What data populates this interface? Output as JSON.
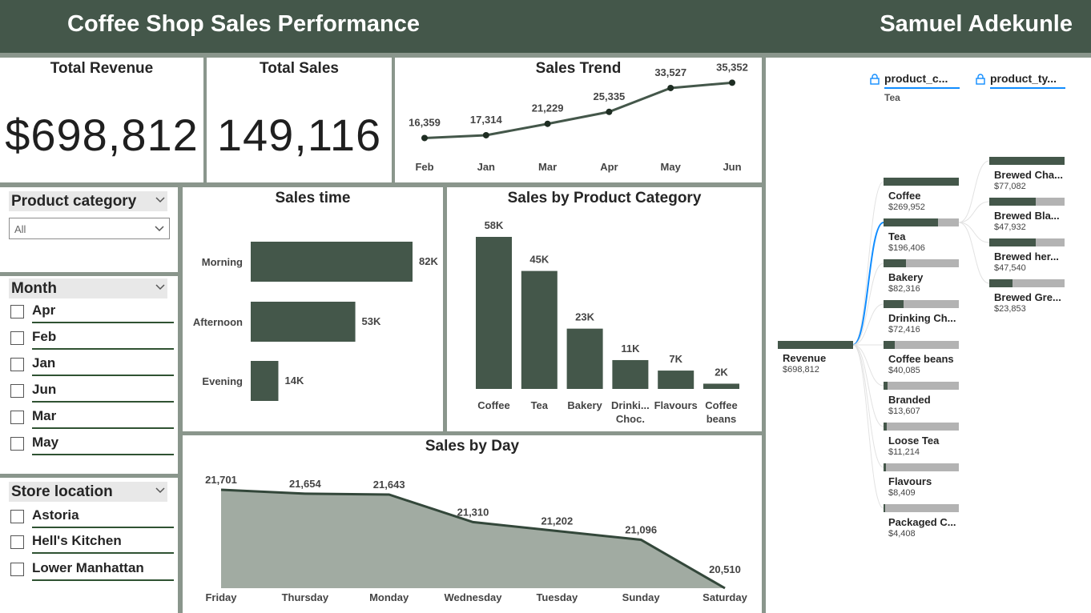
{
  "header": {
    "title": "Coffee Shop Sales Performance",
    "author": "Samuel Adekunle"
  },
  "kpis": {
    "revenue": {
      "title": "Total Revenue",
      "value": "$698,812"
    },
    "sales": {
      "title": "Total Sales",
      "value": "149,116"
    }
  },
  "slicers": {
    "category": {
      "title": "Product category",
      "selected": "All"
    },
    "month": {
      "title": "Month",
      "items": [
        "Apr",
        "Feb",
        "Jan",
        "Jun",
        "Mar",
        "May"
      ]
    },
    "location": {
      "title": "Store location",
      "items": [
        "Astoria",
        "Hell's Kitchen",
        "Lower Manhattan"
      ]
    }
  },
  "colors": {
    "primary": "#44574a",
    "area": "#a1aba2",
    "accent": "#118dff",
    "track": "#b3b3b3"
  },
  "chart_data": [
    {
      "type": "line",
      "title": "Sales Trend",
      "categories": [
        "Feb",
        "Jan",
        "Mar",
        "Apr",
        "May",
        "Jun"
      ],
      "values": [
        16359,
        17314,
        21229,
        25335,
        33527,
        35352
      ],
      "labels": [
        "16,359",
        "17,314",
        "21,229",
        "25,335",
        "33,527",
        "35,352"
      ],
      "ylim": [
        0,
        40000
      ]
    },
    {
      "type": "bar",
      "orientation": "horizontal",
      "title": "Sales time",
      "categories": [
        "Morning",
        "Afternoon",
        "Evening"
      ],
      "values": [
        82,
        53,
        14
      ],
      "labels": [
        "82K",
        "53K",
        "14K"
      ],
      "xlim": [
        0,
        82
      ]
    },
    {
      "type": "bar",
      "title": "Sales by Product Category",
      "categories": [
        [
          "Coffee"
        ],
        [
          "Tea"
        ],
        [
          "Bakery"
        ],
        [
          "Drinki...",
          "Choc."
        ],
        [
          "Flavours"
        ],
        [
          "Coffee",
          "beans"
        ]
      ],
      "values": [
        58,
        45,
        23,
        11,
        7,
        2
      ],
      "labels": [
        "58K",
        "45K",
        "23K",
        "11K",
        "7K",
        "2K"
      ],
      "ylim": [
        0,
        58
      ]
    },
    {
      "type": "area",
      "title": "Sales by Day",
      "categories": [
        "Friday",
        "Thursday",
        "Monday",
        "Wednesday",
        "Tuesday",
        "Sunday",
        "Saturday"
      ],
      "values": [
        21701,
        21654,
        21643,
        21310,
        21202,
        21096,
        20510
      ],
      "labels": [
        "21,701",
        "21,654",
        "21,643",
        "21,310",
        "21,202",
        "21,096",
        "20,510"
      ],
      "ylim": [
        20510,
        21701
      ]
    }
  ],
  "decomposition": {
    "filters": [
      {
        "label": "product_c...",
        "value": "Tea"
      },
      {
        "label": "product_ty...",
        "value": ""
      }
    ],
    "root": {
      "label": "Revenue",
      "value": "$698,812",
      "fraction": 1.0
    },
    "level1": [
      {
        "label": "Coffee",
        "value": "$269,952",
        "fraction": 1.0
      },
      {
        "label": "Tea",
        "value": "$196,406",
        "fraction": 0.72
      },
      {
        "label": "Bakery",
        "value": "$82,316",
        "fraction": 0.3
      },
      {
        "label": "Drinking Ch...",
        "value": "$72,416",
        "fraction": 0.27
      },
      {
        "label": "Coffee beans",
        "value": "$40,085",
        "fraction": 0.15
      },
      {
        "label": "Branded",
        "value": "$13,607",
        "fraction": 0.05
      },
      {
        "label": "Loose Tea",
        "value": "$11,214",
        "fraction": 0.04
      },
      {
        "label": "Flavours",
        "value": "$8,409",
        "fraction": 0.03
      },
      {
        "label": "Packaged C...",
        "value": "$4,408",
        "fraction": 0.016
      }
    ],
    "level2": [
      {
        "label": "Brewed Cha...",
        "value": "$77,082",
        "fraction": 1.0
      },
      {
        "label": "Brewed Bla...",
        "value": "$47,932",
        "fraction": 0.62
      },
      {
        "label": "Brewed her...",
        "value": "$47,540",
        "fraction": 0.62
      },
      {
        "label": "Brewed Gre...",
        "value": "$23,853",
        "fraction": 0.31
      }
    ]
  }
}
